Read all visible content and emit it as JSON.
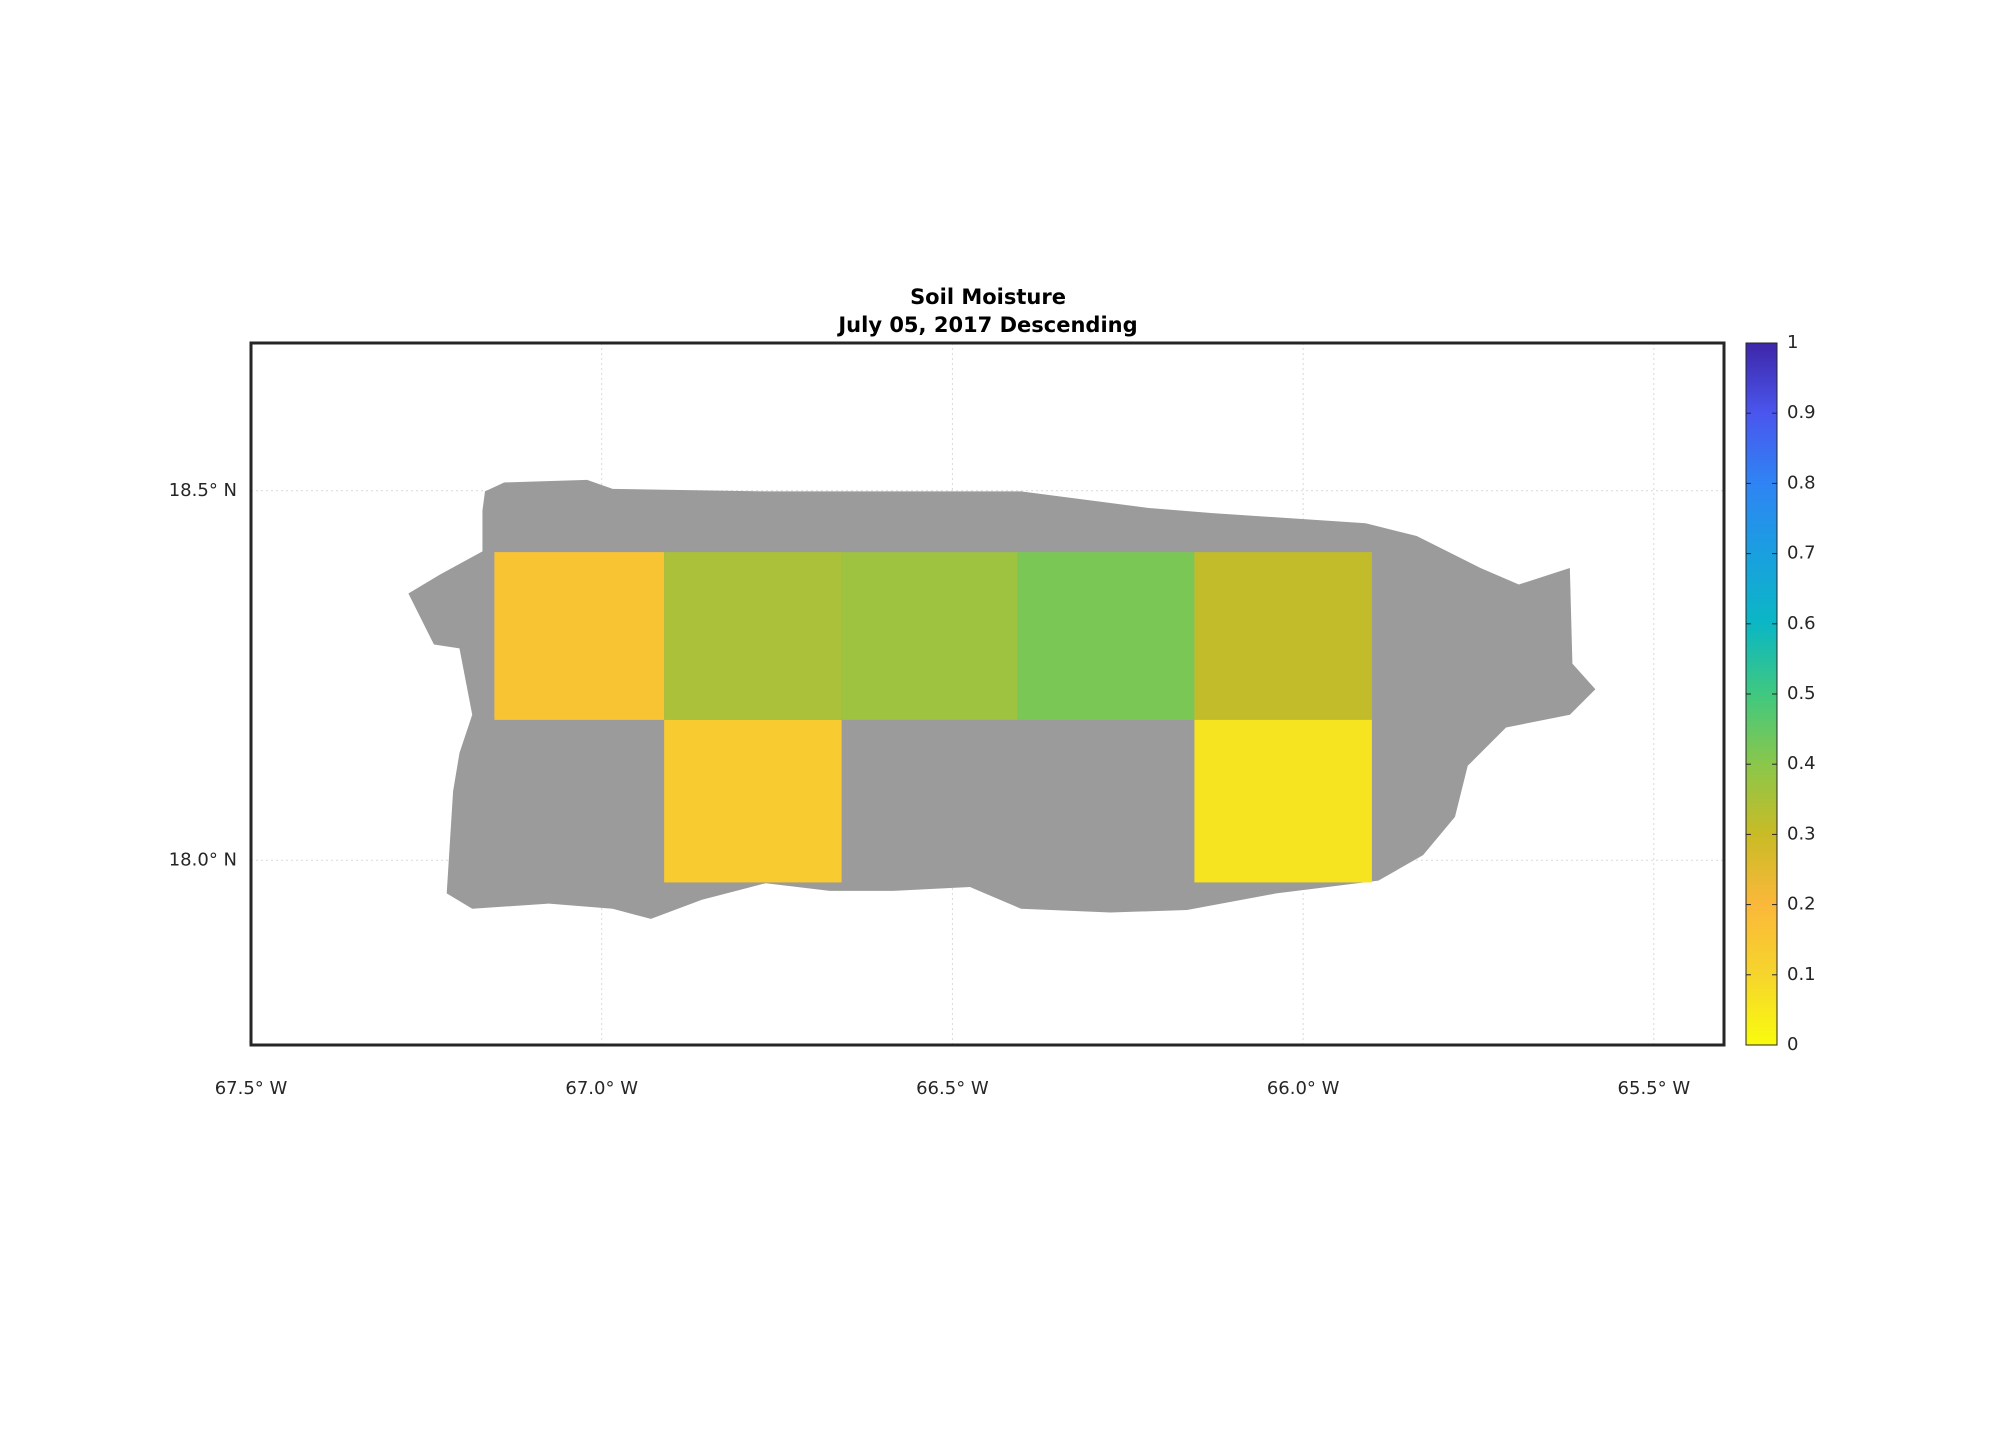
{
  "chart_data": {
    "type": "gridmap",
    "title": "Soil Moisture",
    "subtitle": "July 05, 2017 Descending",
    "xlim": [
      -67.5,
      -65.4
    ],
    "ylim": [
      17.75,
      18.7
    ],
    "xticks": [
      {
        "value": -67.5,
        "label": "67.5° W"
      },
      {
        "value": -67.0,
        "label": "67.0° W"
      },
      {
        "value": -66.5,
        "label": "66.5° W"
      },
      {
        "value": -66.0,
        "label": "66.0° W"
      },
      {
        "value": -65.5,
        "label": "65.5° W"
      }
    ],
    "yticks": [
      {
        "value": 18.0,
        "label": "18.0° N"
      },
      {
        "value": 18.5,
        "label": "18.5° N"
      }
    ],
    "grid": true,
    "land_color": "#9b9b9b",
    "colormap": [
      "#f9fb0e",
      "#f6d52c",
      "#fbb83a",
      "#c9bb26",
      "#8ac74b",
      "#3fc880",
      "#0bb7c4",
      "#1a9fe0",
      "#2f84f4",
      "#4a56ee",
      "#3e26a8"
    ],
    "colorbar": {
      "lim": [
        0,
        1
      ],
      "ticks": [
        0,
        0.1,
        0.2,
        0.3,
        0.4,
        0.5,
        0.6,
        0.7,
        0.8,
        0.9,
        1
      ]
    },
    "cells": [
      {
        "lon": [
          -67.153,
          -66.911
        ],
        "lat": [
          18.19,
          18.417
        ],
        "value": 0.16
      },
      {
        "lon": [
          -66.911,
          -66.658
        ],
        "lat": [
          18.19,
          18.417
        ],
        "value": 0.35
      },
      {
        "lon": [
          -66.658,
          -66.407
        ],
        "lat": [
          18.19,
          18.417
        ],
        "value": 0.37
      },
      {
        "lon": [
          -66.407,
          -66.155
        ],
        "lat": [
          18.19,
          18.417
        ],
        "value": 0.42
      },
      {
        "lon": [
          -66.155,
          -65.902
        ],
        "lat": [
          18.19,
          18.417
        ],
        "value": 0.31
      },
      {
        "lon": [
          -66.911,
          -66.658
        ],
        "lat": [
          17.97,
          18.19
        ],
        "value": 0.13
      },
      {
        "lon": [
          -66.155,
          -65.902
        ],
        "lat": [
          17.97,
          18.19
        ],
        "value": 0.06
      }
    ]
  }
}
